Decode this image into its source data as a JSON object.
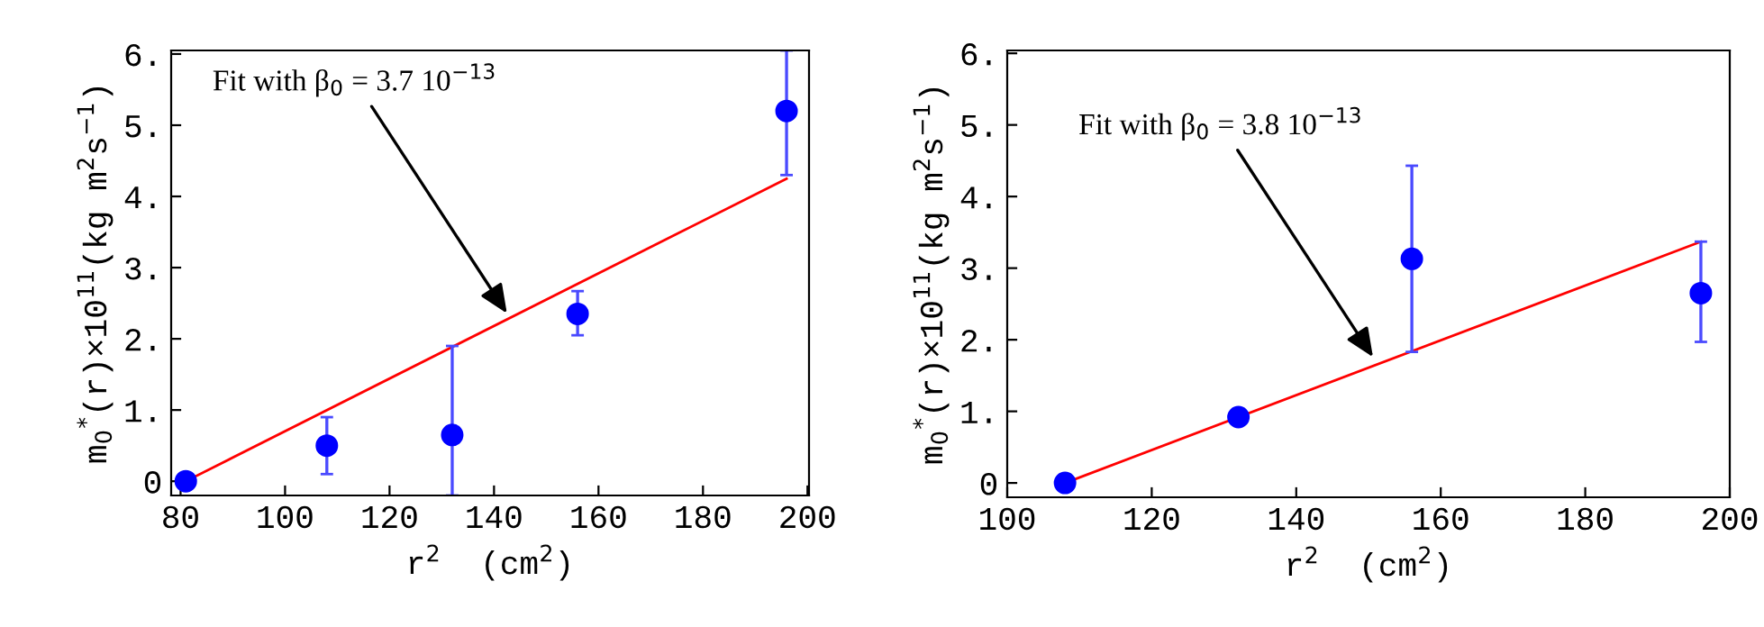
{
  "chart_data": [
    {
      "type": "scatter",
      "xlabel": "r$^{2}$  (cm$^{2}$)",
      "ylabel": "m$_{0}$$^{*}$(r)×10$^{11}$(kg m$^{2}$s$^{−1}$)",
      "xlim": [
        78.2,
        200.3
      ],
      "xticks": [
        80,
        100,
        120,
        140,
        160,
        180,
        200
      ],
      "ylim": [
        -0.2,
        6.05
      ],
      "yticks": [
        {
          "value": 0,
          "label": "0"
        },
        {
          "value": 1,
          "label": "1."
        },
        {
          "value": 2,
          "label": "2."
        },
        {
          "value": 3,
          "label": "3."
        },
        {
          "value": 4,
          "label": "4."
        },
        {
          "value": 5,
          "label": "5."
        },
        {
          "value": 6,
          "label": "6."
        }
      ],
      "grid": false,
      "legend": false,
      "annotations": [
        {
          "text": "Fit with β$_{0}$ = 3.7 10$^{−13}$",
          "x": 143,
          "y": 2.3
        }
      ],
      "series": [
        {
          "type": "line",
          "color": "#ff0000",
          "marker": "none",
          "line_style": "solid",
          "x": [
            81,
            196
          ],
          "values": [
            0,
            4.25
          ]
        },
        {
          "color": "#0000ff",
          "marker": "circle",
          "x": [
            81,
            108,
            132,
            156,
            196
          ],
          "values": [
            0,
            0.5,
            0.65,
            2.35,
            5.2
          ],
          "errors": [
            null,
            [
              0.1,
              0.9
            ],
            [
              -0.2,
              1.9
            ],
            [
              2.05,
              2.67
            ],
            [
              4.3,
              6.05
            ]
          ]
        }
      ]
    },
    {
      "type": "scatter",
      "xlabel": "r$^{2}$  (cm$^{2}$)",
      "ylabel": "m$_{0}$$^{*}$(r)×10$^{11}$(kg m$^{2}$s$^{−1}$)",
      "xlim": [
        100,
        200
      ],
      "xticks": [
        100,
        120,
        140,
        160,
        180,
        200
      ],
      "ylim": [
        -0.2,
        6.04
      ],
      "yticks": [
        {
          "value": 0,
          "label": "0"
        },
        {
          "value": 1,
          "label": "1."
        },
        {
          "value": 2,
          "label": "2."
        },
        {
          "value": 3,
          "label": "3."
        },
        {
          "value": 4,
          "label": "4."
        },
        {
          "value": 5,
          "label": "5."
        },
        {
          "value": 6,
          "label": "6."
        }
      ],
      "grid": false,
      "legend": false,
      "annotations": [
        {
          "text": "Fit with β$_{0}$ = 3.8 10$^{−13}$",
          "x": 151,
          "y": 1.7
        }
      ],
      "series": [
        {
          "type": "line",
          "color": "#ff0000",
          "marker": "none",
          "line_style": "solid",
          "x": [
            108,
            196
          ],
          "values": [
            0,
            3.37
          ]
        },
        {
          "color": "#0000ff",
          "marker": "circle",
          "x": [
            108,
            132,
            156,
            196
          ],
          "values": [
            0,
            0.92,
            3.13,
            2.65
          ],
          "errors": [
            [
              -0.07,
              0.07
            ],
            [
              0.85,
              0.99
            ],
            [
              1.83,
              4.43
            ],
            [
              1.97,
              3.37
            ]
          ]
        }
      ]
    }
  ]
}
